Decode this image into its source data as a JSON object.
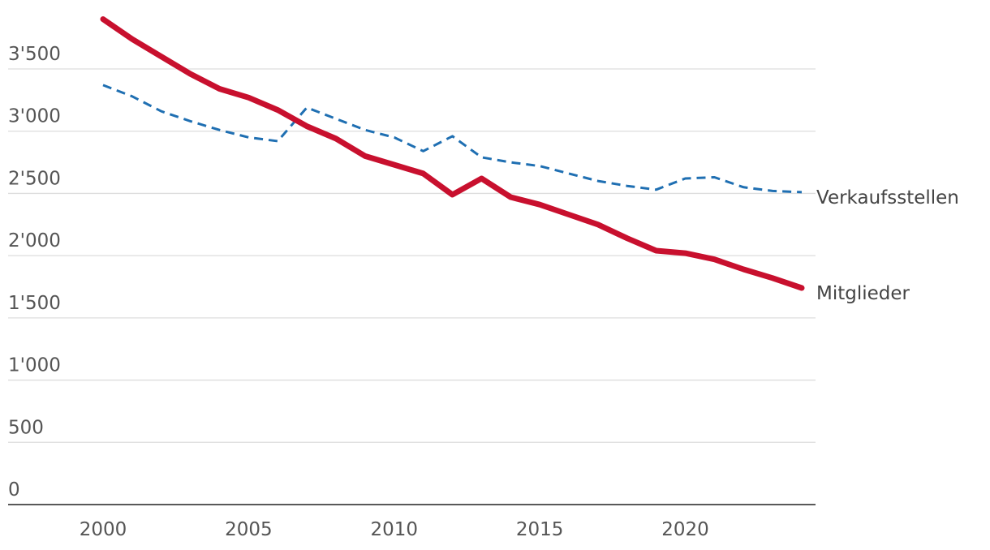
{
  "chart_data": {
    "type": "line",
    "title": "",
    "xlabel": "",
    "ylabel": "",
    "xlim": [
      1997.5,
      2024.4
    ],
    "ylim": [
      0,
      3950
    ],
    "grid": "horizontal",
    "legend": "direct labels at line ends",
    "x_ticks": [
      {
        "value": 2000,
        "label": "2000"
      },
      {
        "value": 2005,
        "label": "2005"
      },
      {
        "value": 2010,
        "label": "2010"
      },
      {
        "value": 2015,
        "label": "2015"
      },
      {
        "value": 2020,
        "label": "2020"
      }
    ],
    "y_ticks": [
      {
        "value": 0,
        "label": "0"
      },
      {
        "value": 500,
        "label": "500"
      },
      {
        "value": 1000,
        "label": "1'000"
      },
      {
        "value": 1500,
        "label": "1'500"
      },
      {
        "value": 2000,
        "label": "2'000"
      },
      {
        "value": 2500,
        "label": "2'500"
      },
      {
        "value": 3000,
        "label": "3'000"
      },
      {
        "value": 3500,
        "label": "3'500"
      }
    ],
    "series": [
      {
        "name": "Verkaufsstellen",
        "color": "#1f6fb2",
        "dash": "dashed",
        "x": [
          2000,
          2001,
          2002,
          2003,
          2004,
          2005,
          2006,
          2007,
          2008,
          2009,
          2010,
          2011,
          2012,
          2013,
          2014,
          2015,
          2016,
          2017,
          2018,
          2019,
          2020,
          2021,
          2022,
          2023,
          2024
        ],
        "y": [
          3370,
          3280,
          3160,
          3080,
          3010,
          2950,
          2920,
          3190,
          3100,
          3010,
          2950,
          2840,
          2960,
          2790,
          2750,
          2720,
          2660,
          2600,
          2560,
          2530,
          2620,
          2630,
          2550,
          2520,
          2510
        ]
      },
      {
        "name": "Mitglieder",
        "color": "#c8102e",
        "dash": "solid",
        "x": [
          2000,
          2001,
          2002,
          2003,
          2004,
          2005,
          2006,
          2007,
          2008,
          2009,
          2010,
          2011,
          2012,
          2013,
          2014,
          2015,
          2016,
          2017,
          2018,
          2019,
          2020,
          2021,
          2022,
          2023,
          2024
        ],
        "y": [
          3900,
          3740,
          3600,
          3460,
          3340,
          3270,
          3170,
          3040,
          2940,
          2800,
          2730,
          2660,
          2490,
          2620,
          2470,
          2410,
          2330,
          2250,
          2140,
          2040,
          2020,
          1970,
          1890,
          1820,
          1740
        ]
      }
    ]
  }
}
